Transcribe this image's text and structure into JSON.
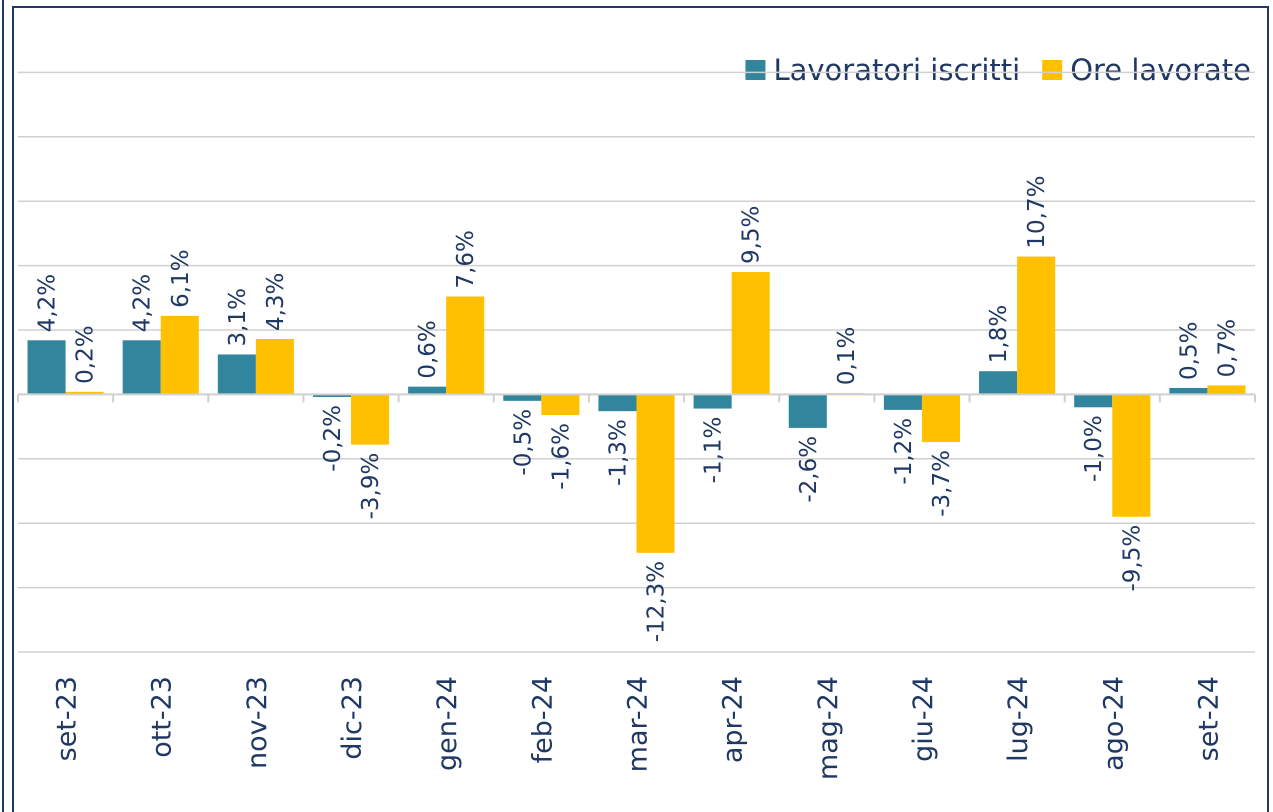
{
  "chart_data": {
    "type": "bar",
    "categories": [
      "set-23",
      "ott-23",
      "nov-23",
      "dic-23",
      "gen-24",
      "feb-24",
      "mar-24",
      "apr-24",
      "mag-24",
      "giu-24",
      "lug-24",
      "ago-24",
      "set-24"
    ],
    "series": [
      {
        "name": "Lavoratori iscritti",
        "color": "#31859c",
        "values": [
          4.2,
          4.2,
          3.1,
          -0.2,
          0.6,
          -0.5,
          -1.3,
          -1.1,
          -2.6,
          -1.2,
          1.8,
          -1.0,
          0.5
        ],
        "value_labels": [
          "4,2%",
          "4,2%",
          "3,1%",
          "-0,2%",
          "0,6%",
          "-0,5%",
          "-1,3%",
          "-1,1%",
          "-2,6%",
          "-1,2%",
          "1,8%",
          "-1,0%",
          "0,5%"
        ]
      },
      {
        "name": "Ore lavorate",
        "color": "#ffc000",
        "values": [
          0.2,
          6.1,
          4.3,
          -3.9,
          7.6,
          -1.6,
          -12.3,
          9.5,
          0.1,
          -3.7,
          10.7,
          -9.5,
          0.7
        ],
        "value_labels": [
          "0,2%",
          "6,1%",
          "4,3%",
          "-3,9%",
          "7,6%",
          "-1,6%",
          "-12,3%",
          "9,5%",
          "0,1%",
          "-3,7%",
          "10,7%",
          "-9,5%",
          "0,7%"
        ]
      }
    ],
    "ylim": [
      -20,
      30
    ],
    "yticks": [
      -20,
      -15,
      -10,
      -5,
      0,
      5,
      10,
      15,
      20,
      25
    ],
    "grid": true,
    "legend": "upper-right"
  }
}
